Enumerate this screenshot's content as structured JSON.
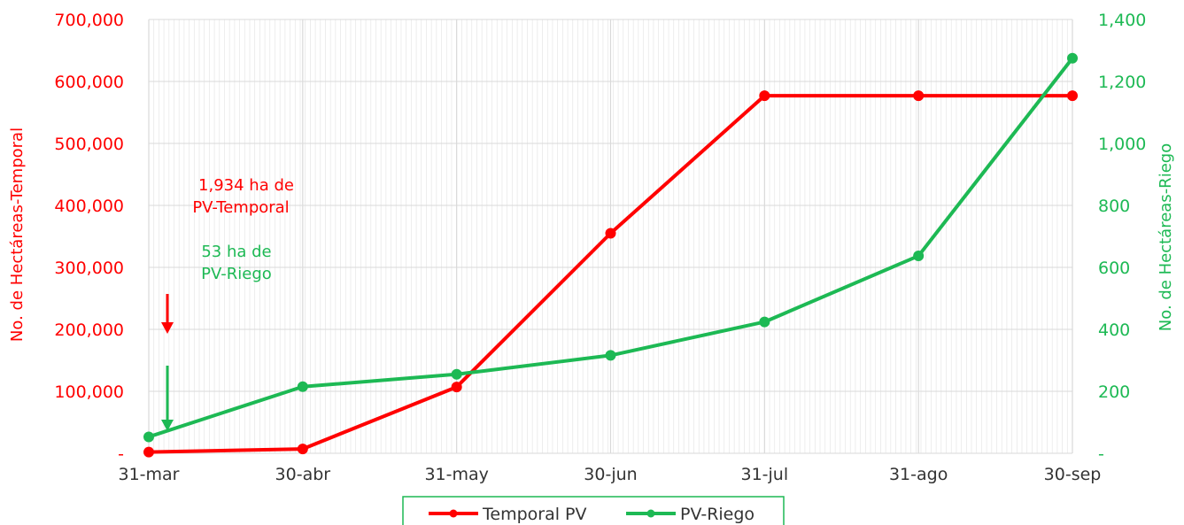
{
  "colors": {
    "temporal": "#ff0000",
    "riego": "#1db954",
    "grid": "#d9d9d9",
    "minor_grid": "#e6e6e6"
  },
  "chart_data": {
    "type": "line",
    "categories": [
      "31-mar",
      "30-abr",
      "31-may",
      "30-jun",
      "31-jul",
      "31-ago",
      "30-sep"
    ],
    "ylabel": "No. de Hectáreas-Temporal",
    "y2label": "No. de Hectáreas-Riego",
    "ylim": [
      0,
      700000
    ],
    "y2lim": [
      0,
      1400
    ],
    "y_ticks": [
      0,
      100000,
      200000,
      300000,
      400000,
      500000,
      600000,
      700000
    ],
    "y_tick_labels": [
      "-",
      "100,000",
      "200,000",
      "300,000",
      "400,000",
      "500,000",
      "600,000",
      "700,000"
    ],
    "y2_ticks": [
      0,
      200,
      400,
      600,
      800,
      1000,
      1200,
      1400
    ],
    "y2_tick_labels": [
      "-",
      "200",
      "400",
      "600",
      "800",
      "1,000",
      "1,200",
      "1,400"
    ],
    "grid": true,
    "legend_position": "bottom-center",
    "series": [
      {
        "name": "Temporal PV",
        "axis": "left",
        "values": [
          1934,
          7000,
          107000,
          355000,
          577000,
          577000,
          577000
        ]
      },
      {
        "name": "PV-Riego",
        "axis": "right",
        "values": [
          53,
          215,
          255,
          316,
          424,
          637,
          1275
        ]
      }
    ],
    "annotations": [
      {
        "lines": [
          "1,934 ha de",
          "PV-Temporal"
        ],
        "color": "temporal"
      },
      {
        "lines": [
          "53 ha de",
          "PV-Riego"
        ],
        "color": "riego"
      }
    ]
  }
}
